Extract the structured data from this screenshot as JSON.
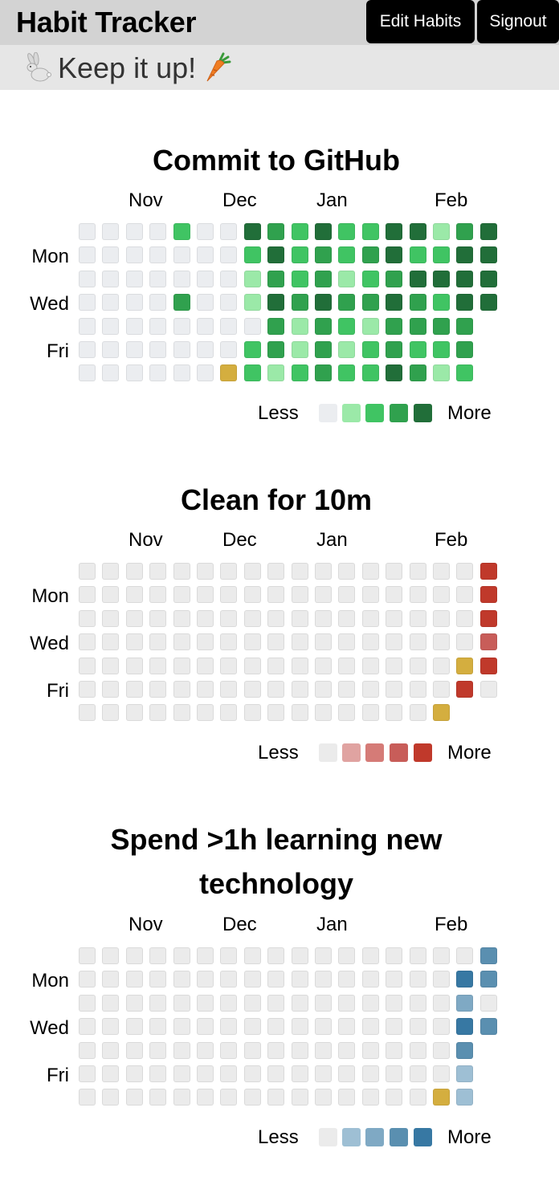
{
  "app": {
    "title": "Habit Tracker",
    "motto": "Keep it up!",
    "motto_icons": [
      "rabbit-icon",
      "carrot-icon"
    ]
  },
  "header": {
    "edit_habits_label": "Edit Habits",
    "signout_label": "Signout"
  },
  "months": [
    "Nov",
    "Dec",
    "Jan",
    "Feb"
  ],
  "day_labels": [
    "Mon",
    "Wed",
    "Fri"
  ],
  "legend": {
    "less": "Less",
    "more": "More"
  },
  "level_key": {
    "0": "none",
    "1": "light",
    "2": "medium",
    "3": "strong",
    "4": "max",
    "t": "today"
  },
  "today_color": "#d4ae3f",
  "habits": [
    {
      "title": "Commit to GitHub",
      "colors": [
        "#ebedf0",
        "#9be9a8",
        "#40c463",
        "#30a14e",
        "#216e39"
      ],
      "weeks": [
        "0000000",
        "0000000",
        "0000000",
        "0000000",
        "2003000",
        "0000000",
        "000000t",
        "4211022",
        "3434331",
        "2223112",
        "4334333",
        "2213212",
        "2323122",
        "4434334",
        "4243323",
        "1242321",
        "3444332",
        "4444"
      ]
    },
    {
      "title": "Clean for 10m",
      "colors": [
        "#ebebeb",
        "#e0a3a1",
        "#d57b77",
        "#c85d59",
        "#c0392b"
      ],
      "weeks": [
        "0000000",
        "0000000",
        "0000000",
        "0000000",
        "0000000",
        "0000000",
        "0000000",
        "0000000",
        "0000000",
        "0000000",
        "0000000",
        "0000000",
        "0000000",
        "0000000",
        "0000000",
        "000000t",
        "0000t4",
        "444340"
      ]
    },
    {
      "title": "Spend >1h learning new technology",
      "colors": [
        "#ebebeb",
        "#9ebfd4",
        "#7fa9c4",
        "#5a8fb0",
        "#3778a3"
      ],
      "weeks": [
        "0000000",
        "0000000",
        "0000000",
        "0000000",
        "0000000",
        "0000000",
        "0000000",
        "0000000",
        "0000000",
        "0000000",
        "0000000",
        "0000000",
        "0000000",
        "0000000",
        "0000000",
        "000000t",
        "0424311",
        "3303"
      ]
    }
  ]
}
